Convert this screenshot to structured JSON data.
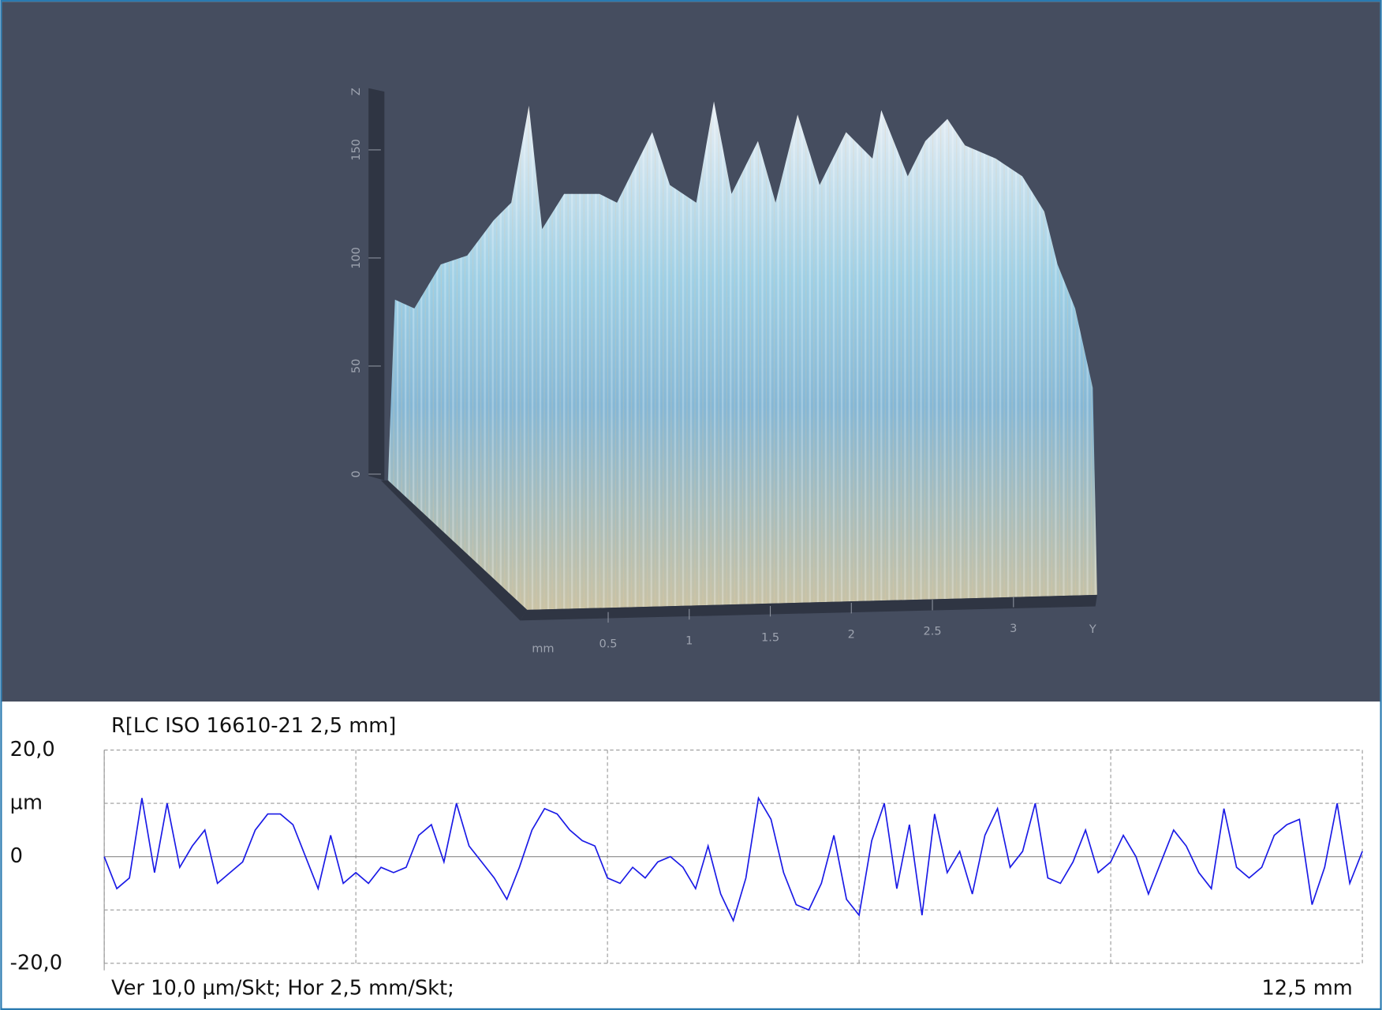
{
  "surface_3d": {
    "z_ticks": [
      0,
      50,
      100,
      150
    ],
    "z_axis_label": "Z",
    "y_unit": "mm",
    "y_ticks": [
      0.5,
      1,
      1.5,
      2,
      2.5,
      3
    ],
    "y_axis_label": "Y"
  },
  "chart_data": {
    "type": "line",
    "title": "R[LC ISO 16610-21 2,5 mm]",
    "footer_left": "Ver 10,0 µm/Skt; Hor 2,5 mm/Skt;",
    "footer_right": "12,5 mm",
    "color": "#1a1ae6",
    "xlim": [
      0,
      12.5
    ],
    "ylim": [
      -20,
      20
    ],
    "yticks": [
      {
        "value": 20,
        "label": "20,0"
      },
      {
        "value": 10,
        "label": "µm"
      },
      0,
      {
        "value": -10,
        "label": null
      },
      {
        "value": -20,
        "label": "-20,0"
      }
    ],
    "xgrid": [
      0,
      2.5,
      5,
      7.5,
      10,
      12.5
    ],
    "x": [
      0,
      0.125,
      0.25,
      0.375,
      0.5,
      0.625,
      0.75,
      0.875,
      1,
      1.125,
      1.25,
      1.375,
      1.5,
      1.625,
      1.75,
      1.875,
      2,
      2.125,
      2.25,
      2.375,
      2.5,
      2.625,
      2.75,
      2.875,
      3,
      3.125,
      3.25,
      3.375,
      3.5,
      3.625,
      3.75,
      3.875,
      4,
      4.125,
      4.25,
      4.375,
      4.5,
      4.625,
      4.75,
      4.875,
      5,
      5.125,
      5.25,
      5.375,
      5.5,
      5.625,
      5.75,
      5.875,
      6,
      6.125,
      6.25,
      6.375,
      6.5,
      6.625,
      6.75,
      6.875,
      7,
      7.125,
      7.25,
      7.375,
      7.5,
      7.625,
      7.75,
      7.875,
      8,
      8.125,
      8.25,
      8.375,
      8.5,
      8.625,
      8.75,
      8.875,
      9,
      9.125,
      9.25,
      9.375,
      9.5,
      9.625,
      9.75,
      9.875,
      10,
      10.125,
      10.25,
      10.375,
      10.5,
      10.625,
      10.75,
      10.875,
      11,
      11.125,
      11.25,
      11.375,
      11.5,
      11.625,
      11.75,
      11.875,
      12,
      12.125,
      12.25,
      12.375,
      12.5
    ],
    "values": [
      0,
      -6,
      -4,
      11,
      -3,
      10,
      -2,
      2,
      5,
      -5,
      -3,
      -1,
      5,
      8,
      8,
      6,
      0,
      -6,
      4,
      -5,
      -3,
      -5,
      -2,
      -3,
      -2,
      4,
      6,
      -1,
      10,
      2,
      -1,
      -4,
      -8,
      -2,
      5,
      9,
      8,
      5,
      3,
      2,
      -4,
      -5,
      -2,
      -4,
      -1,
      0,
      -2,
      -6,
      2,
      -7,
      -12,
      -4,
      11,
      7,
      -3,
      -9,
      -10,
      -5,
      4,
      -8,
      -11,
      3,
      10,
      -6,
      6,
      -11,
      8,
      -3,
      1,
      -7,
      4,
      9,
      -2,
      1,
      10,
      -4,
      -5,
      -1,
      5,
      -3,
      -1,
      4,
      0,
      -7,
      -1,
      5,
      2,
      -3,
      -6,
      9,
      -2,
      -4,
      -2,
      4,
      6,
      7,
      -9,
      -2,
      10,
      -5,
      1
    ]
  }
}
